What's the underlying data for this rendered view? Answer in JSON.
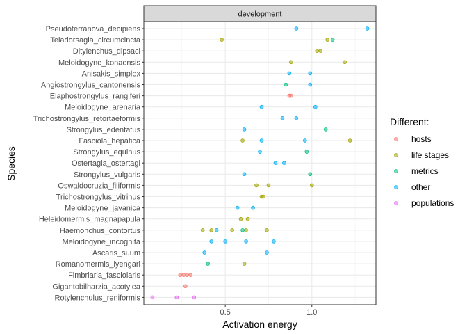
{
  "chart_data": {
    "type": "scatter",
    "facet_label": "development",
    "xlabel": "Activation energy",
    "ylabel": "Species",
    "xlim": [
      0.03,
      1.37
    ],
    "x_ticks": [
      0.5,
      1.0
    ],
    "x_tick_labels": [
      "0.5",
      "1.0"
    ],
    "grid": true,
    "legend_title": "Different:",
    "legend_position": "right",
    "species": [
      "Pseudoterranova_decipiens",
      "Teladorsagia_circumcincta",
      "Ditylenchus_dipsaci",
      "Meloidogyne_konaensis",
      "Anisakis_simplex",
      "Angiostrongylus_cantonensis",
      "Elaphostrongylus_rangiferi",
      "Meloidogyne_arenaria",
      "Trichostrongylus_retortaeformis",
      "Strongylus_edentatus",
      "Fasciola_hepatica",
      "Strongylus_equinus",
      "Ostertagia_ostertagi",
      "Strongylus_vulgaris",
      "Oswaldocruzia_filiformis",
      "Trichostrongylus_vitrinus",
      "Meloidogyne_javanica",
      "Heleidomermis_magnapapula",
      "Haemonchus_contortus",
      "Meloidogyne_incognita",
      "Ascaris_suum",
      "Romanomermis_iyengari",
      "Fimbriaria_fasciolaris",
      "Gigantobilharzia_acotylea",
      "Rotylenchulus_reniformis"
    ],
    "series": [
      {
        "name": "hosts",
        "color": "#F8766D",
        "points": [
          {
            "species": "Elaphostrongylus_rangiferi",
            "x": 0.87
          },
          {
            "species": "Elaphostrongylus_rangiferi",
            "x": 0.88
          },
          {
            "species": "Fimbriaria_fasciolaris",
            "x": 0.24
          },
          {
            "species": "Fimbriaria_fasciolaris",
            "x": 0.26
          },
          {
            "species": "Fimbriaria_fasciolaris",
            "x": 0.28
          },
          {
            "species": "Fimbriaria_fasciolaris",
            "x": 0.3
          },
          {
            "species": "Gigantobilharzia_acotylea",
            "x": 0.27
          }
        ]
      },
      {
        "name": "life stages",
        "color": "#A3A500",
        "points": [
          {
            "species": "Teladorsagia_circumcincta",
            "x": 0.48
          },
          {
            "species": "Teladorsagia_circumcincta",
            "x": 1.09
          },
          {
            "species": "Ditylenchus_dipsaci",
            "x": 1.03
          },
          {
            "species": "Ditylenchus_dipsaci",
            "x": 1.05
          },
          {
            "species": "Meloidogyne_konaensis",
            "x": 0.88
          },
          {
            "species": "Meloidogyne_konaensis",
            "x": 1.19
          },
          {
            "species": "Fasciola_hepatica",
            "x": 0.6
          },
          {
            "species": "Fasciola_hepatica",
            "x": 1.22
          },
          {
            "species": "Oswaldocruzia_filiformis",
            "x": 0.68
          },
          {
            "species": "Oswaldocruzia_filiformis",
            "x": 0.75
          },
          {
            "species": "Oswaldocruzia_filiformis",
            "x": 1.0
          },
          {
            "species": "Trichostrongylus_vitrinus",
            "x": 0.71
          },
          {
            "species": "Trichostrongylus_vitrinus",
            "x": 0.72
          },
          {
            "species": "Heleidomermis_magnapapula",
            "x": 0.59
          },
          {
            "species": "Heleidomermis_magnapapula",
            "x": 0.63
          },
          {
            "species": "Haemonchus_contortus",
            "x": 0.37
          },
          {
            "species": "Haemonchus_contortus",
            "x": 0.42
          },
          {
            "species": "Haemonchus_contortus",
            "x": 0.54
          },
          {
            "species": "Haemonchus_contortus",
            "x": 0.62
          },
          {
            "species": "Haemonchus_contortus",
            "x": 0.74
          },
          {
            "species": "Romanomermis_iyengari",
            "x": 0.61
          }
        ]
      },
      {
        "name": "metrics",
        "color": "#00BF7D",
        "points": [
          {
            "species": "Teladorsagia_circumcincta",
            "x": 1.12
          },
          {
            "species": "Angiostrongylus_cantonensis",
            "x": 0.85
          },
          {
            "species": "Strongylus_edentatus",
            "x": 1.08
          },
          {
            "species": "Strongylus_equinus",
            "x": 0.97
          },
          {
            "species": "Strongylus_vulgaris",
            "x": 0.99
          },
          {
            "species": "Haemonchus_contortus",
            "x": 0.6
          },
          {
            "species": "Romanomermis_iyengari",
            "x": 0.4
          }
        ]
      },
      {
        "name": "other",
        "color": "#00B0F6",
        "points": [
          {
            "species": "Pseudoterranova_decipiens",
            "x": 0.91
          },
          {
            "species": "Pseudoterranova_decipiens",
            "x": 1.32
          },
          {
            "species": "Anisakis_simplex",
            "x": 0.87
          },
          {
            "species": "Anisakis_simplex",
            "x": 0.99
          },
          {
            "species": "Angiostrongylus_cantonensis",
            "x": 0.99
          },
          {
            "species": "Meloidogyne_arenaria",
            "x": 0.71
          },
          {
            "species": "Meloidogyne_arenaria",
            "x": 1.02
          },
          {
            "species": "Trichostrongylus_retortaeformis",
            "x": 0.83
          },
          {
            "species": "Trichostrongylus_retortaeformis",
            "x": 0.91
          },
          {
            "species": "Strongylus_edentatus",
            "x": 0.61
          },
          {
            "species": "Fasciola_hepatica",
            "x": 0.71
          },
          {
            "species": "Fasciola_hepatica",
            "x": 0.96
          },
          {
            "species": "Strongylus_equinus",
            "x": 0.7
          },
          {
            "species": "Ostertagia_ostertagi",
            "x": 0.79
          },
          {
            "species": "Ostertagia_ostertagi",
            "x": 0.84
          },
          {
            "species": "Strongylus_vulgaris",
            "x": 0.61
          },
          {
            "species": "Meloidogyne_javanica",
            "x": 0.57
          },
          {
            "species": "Meloidogyne_javanica",
            "x": 0.66
          },
          {
            "species": "Haemonchus_contortus",
            "x": 0.45
          },
          {
            "species": "Meloidogyne_incognita",
            "x": 0.42
          },
          {
            "species": "Meloidogyne_incognita",
            "x": 0.5
          },
          {
            "species": "Meloidogyne_incognita",
            "x": 0.62
          },
          {
            "species": "Meloidogyne_incognita",
            "x": 0.78
          },
          {
            "species": "Ascaris_suum",
            "x": 0.38
          },
          {
            "species": "Ascaris_suum",
            "x": 0.74
          }
        ]
      },
      {
        "name": "populations",
        "color": "#E76BF3",
        "points": [
          {
            "species": "Rotylenchulus_reniformis",
            "x": 0.08
          },
          {
            "species": "Rotylenchulus_reniformis",
            "x": 0.22
          },
          {
            "species": "Rotylenchulus_reniformis",
            "x": 0.32
          }
        ]
      }
    ]
  }
}
